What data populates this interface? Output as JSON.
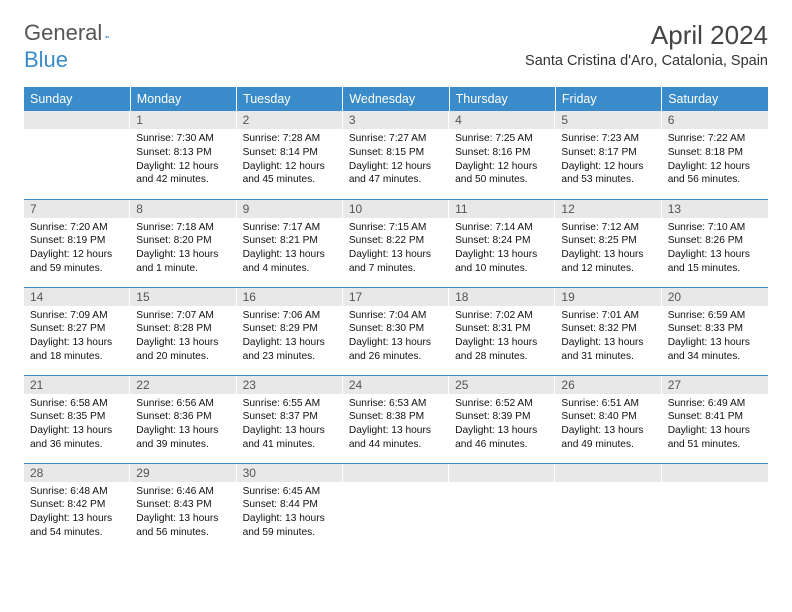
{
  "brand": {
    "part1": "General",
    "part2": "Blue",
    "color1": "#555555",
    "color2": "#3a8bc9"
  },
  "title": "April 2024",
  "location": "Santa Cristina d'Aro, Catalonia, Spain",
  "colors": {
    "header_bg": "#3a8bc9",
    "header_fg": "#ffffff",
    "daynum_bg": "#e8e8e8",
    "border": "#3a8bc9"
  },
  "weekdays": [
    "Sunday",
    "Monday",
    "Tuesday",
    "Wednesday",
    "Thursday",
    "Friday",
    "Saturday"
  ],
  "weeks": [
    [
      {
        "n": "",
        "l": []
      },
      {
        "n": "1",
        "l": [
          "Sunrise: 7:30 AM",
          "Sunset: 8:13 PM",
          "Daylight: 12 hours and 42 minutes."
        ]
      },
      {
        "n": "2",
        "l": [
          "Sunrise: 7:28 AM",
          "Sunset: 8:14 PM",
          "Daylight: 12 hours and 45 minutes."
        ]
      },
      {
        "n": "3",
        "l": [
          "Sunrise: 7:27 AM",
          "Sunset: 8:15 PM",
          "Daylight: 12 hours and 47 minutes."
        ]
      },
      {
        "n": "4",
        "l": [
          "Sunrise: 7:25 AM",
          "Sunset: 8:16 PM",
          "Daylight: 12 hours and 50 minutes."
        ]
      },
      {
        "n": "5",
        "l": [
          "Sunrise: 7:23 AM",
          "Sunset: 8:17 PM",
          "Daylight: 12 hours and 53 minutes."
        ]
      },
      {
        "n": "6",
        "l": [
          "Sunrise: 7:22 AM",
          "Sunset: 8:18 PM",
          "Daylight: 12 hours and 56 minutes."
        ]
      }
    ],
    [
      {
        "n": "7",
        "l": [
          "Sunrise: 7:20 AM",
          "Sunset: 8:19 PM",
          "Daylight: 12 hours and 59 minutes."
        ]
      },
      {
        "n": "8",
        "l": [
          "Sunrise: 7:18 AM",
          "Sunset: 8:20 PM",
          "Daylight: 13 hours and 1 minute."
        ]
      },
      {
        "n": "9",
        "l": [
          "Sunrise: 7:17 AM",
          "Sunset: 8:21 PM",
          "Daylight: 13 hours and 4 minutes."
        ]
      },
      {
        "n": "10",
        "l": [
          "Sunrise: 7:15 AM",
          "Sunset: 8:22 PM",
          "Daylight: 13 hours and 7 minutes."
        ]
      },
      {
        "n": "11",
        "l": [
          "Sunrise: 7:14 AM",
          "Sunset: 8:24 PM",
          "Daylight: 13 hours and 10 minutes."
        ]
      },
      {
        "n": "12",
        "l": [
          "Sunrise: 7:12 AM",
          "Sunset: 8:25 PM",
          "Daylight: 13 hours and 12 minutes."
        ]
      },
      {
        "n": "13",
        "l": [
          "Sunrise: 7:10 AM",
          "Sunset: 8:26 PM",
          "Daylight: 13 hours and 15 minutes."
        ]
      }
    ],
    [
      {
        "n": "14",
        "l": [
          "Sunrise: 7:09 AM",
          "Sunset: 8:27 PM",
          "Daylight: 13 hours and 18 minutes."
        ]
      },
      {
        "n": "15",
        "l": [
          "Sunrise: 7:07 AM",
          "Sunset: 8:28 PM",
          "Daylight: 13 hours and 20 minutes."
        ]
      },
      {
        "n": "16",
        "l": [
          "Sunrise: 7:06 AM",
          "Sunset: 8:29 PM",
          "Daylight: 13 hours and 23 minutes."
        ]
      },
      {
        "n": "17",
        "l": [
          "Sunrise: 7:04 AM",
          "Sunset: 8:30 PM",
          "Daylight: 13 hours and 26 minutes."
        ]
      },
      {
        "n": "18",
        "l": [
          "Sunrise: 7:02 AM",
          "Sunset: 8:31 PM",
          "Daylight: 13 hours and 28 minutes."
        ]
      },
      {
        "n": "19",
        "l": [
          "Sunrise: 7:01 AM",
          "Sunset: 8:32 PM",
          "Daylight: 13 hours and 31 minutes."
        ]
      },
      {
        "n": "20",
        "l": [
          "Sunrise: 6:59 AM",
          "Sunset: 8:33 PM",
          "Daylight: 13 hours and 34 minutes."
        ]
      }
    ],
    [
      {
        "n": "21",
        "l": [
          "Sunrise: 6:58 AM",
          "Sunset: 8:35 PM",
          "Daylight: 13 hours and 36 minutes."
        ]
      },
      {
        "n": "22",
        "l": [
          "Sunrise: 6:56 AM",
          "Sunset: 8:36 PM",
          "Daylight: 13 hours and 39 minutes."
        ]
      },
      {
        "n": "23",
        "l": [
          "Sunrise: 6:55 AM",
          "Sunset: 8:37 PM",
          "Daylight: 13 hours and 41 minutes."
        ]
      },
      {
        "n": "24",
        "l": [
          "Sunrise: 6:53 AM",
          "Sunset: 8:38 PM",
          "Daylight: 13 hours and 44 minutes."
        ]
      },
      {
        "n": "25",
        "l": [
          "Sunrise: 6:52 AM",
          "Sunset: 8:39 PM",
          "Daylight: 13 hours and 46 minutes."
        ]
      },
      {
        "n": "26",
        "l": [
          "Sunrise: 6:51 AM",
          "Sunset: 8:40 PM",
          "Daylight: 13 hours and 49 minutes."
        ]
      },
      {
        "n": "27",
        "l": [
          "Sunrise: 6:49 AM",
          "Sunset: 8:41 PM",
          "Daylight: 13 hours and 51 minutes."
        ]
      }
    ],
    [
      {
        "n": "28",
        "l": [
          "Sunrise: 6:48 AM",
          "Sunset: 8:42 PM",
          "Daylight: 13 hours and 54 minutes."
        ]
      },
      {
        "n": "29",
        "l": [
          "Sunrise: 6:46 AM",
          "Sunset: 8:43 PM",
          "Daylight: 13 hours and 56 minutes."
        ]
      },
      {
        "n": "30",
        "l": [
          "Sunrise: 6:45 AM",
          "Sunset: 8:44 PM",
          "Daylight: 13 hours and 59 minutes."
        ]
      },
      {
        "n": "",
        "l": []
      },
      {
        "n": "",
        "l": []
      },
      {
        "n": "",
        "l": []
      },
      {
        "n": "",
        "l": []
      }
    ]
  ]
}
